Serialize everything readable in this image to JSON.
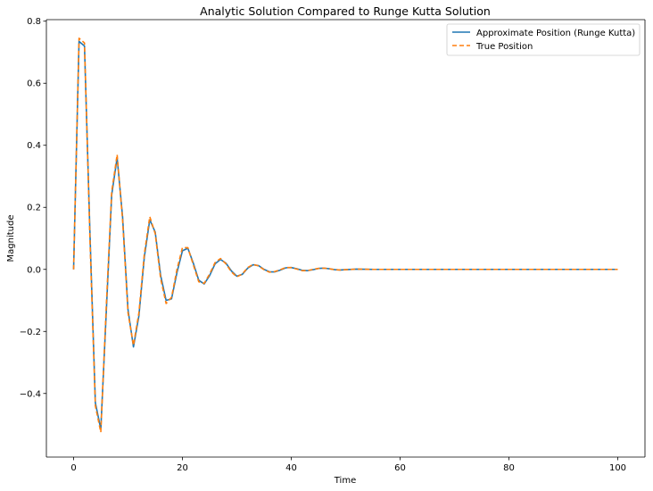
{
  "chart_data": {
    "type": "line",
    "title": "Analytic Solution Compared to Runge Kutta Solution",
    "xlabel": "Time",
    "ylabel": "Magnitude",
    "xlim": [
      -5,
      105
    ],
    "ylim": [
      -0.605,
      0.805
    ],
    "x_ticks": [
      0,
      20,
      40,
      60,
      80,
      100
    ],
    "y_ticks": [
      -0.4,
      -0.2,
      0.0,
      0.2,
      0.4,
      0.6,
      0.8
    ],
    "x_tick_labels": [
      "0",
      "20",
      "40",
      "60",
      "80",
      "100"
    ],
    "y_tick_labels": [
      "−0.4",
      "−0.2",
      "0.0",
      "0.2",
      "0.4",
      "0.6",
      "0.8"
    ],
    "grid": false,
    "legend_position": "top-right",
    "series": [
      {
        "name": "Approximate Position (Runge Kutta)",
        "color": "#1f77b4",
        "style": "solid",
        "x": [
          0,
          1,
          2,
          3,
          4,
          5,
          6,
          7,
          8,
          9,
          10,
          11,
          12,
          13,
          14,
          15,
          16,
          17,
          18,
          19,
          20,
          21,
          22,
          23,
          24,
          25,
          26,
          27,
          28,
          29,
          30,
          31,
          32,
          33,
          34,
          35,
          36,
          37,
          38,
          39,
          40,
          41,
          42,
          43,
          44,
          45,
          46,
          47,
          48,
          49,
          50,
          52,
          55,
          60,
          70,
          80,
          90,
          100
        ],
        "y": [
          0.0,
          0.735,
          0.72,
          0.12,
          -0.43,
          -0.515,
          -0.14,
          0.24,
          0.36,
          0.17,
          -0.13,
          -0.25,
          -0.15,
          0.04,
          0.16,
          0.12,
          -0.02,
          -0.1,
          -0.095,
          -0.01,
          0.06,
          0.068,
          0.02,
          -0.035,
          -0.047,
          -0.02,
          0.018,
          0.032,
          0.02,
          -0.005,
          -0.022,
          -0.016,
          0.004,
          0.015,
          0.012,
          0.0,
          -0.008,
          -0.008,
          -0.002,
          0.005,
          0.006,
          0.002,
          -0.003,
          -0.004,
          -0.001,
          0.003,
          0.004,
          0.002,
          -0.001,
          -0.002,
          -0.001,
          0.001,
          0.0,
          0.0,
          0.0,
          0.0,
          0.0,
          0.0
        ]
      },
      {
        "name": "True Position",
        "color": "#ff7f0e",
        "style": "dashed",
        "x": [
          0,
          1,
          2,
          3,
          4,
          5,
          6,
          7,
          8,
          9,
          10,
          11,
          12,
          13,
          14,
          15,
          16,
          17,
          18,
          19,
          20,
          21,
          22,
          23,
          24,
          25,
          26,
          27,
          28,
          29,
          30,
          31,
          32,
          33,
          34,
          35,
          36,
          37,
          38,
          39,
          40,
          41,
          42,
          43,
          44,
          45,
          46,
          47,
          48,
          49,
          50,
          52,
          55,
          60,
          70,
          80,
          90,
          100
        ],
        "y": [
          0.0,
          0.745,
          0.73,
          0.1,
          -0.44,
          -0.525,
          -0.12,
          0.25,
          0.37,
          0.16,
          -0.14,
          -0.245,
          -0.14,
          0.05,
          0.17,
          0.115,
          -0.03,
          -0.11,
          -0.09,
          0.0,
          0.07,
          0.07,
          0.015,
          -0.04,
          -0.045,
          -0.015,
          0.022,
          0.035,
          0.018,
          -0.008,
          -0.024,
          -0.015,
          0.006,
          0.016,
          0.011,
          -0.001,
          -0.009,
          -0.007,
          -0.001,
          0.006,
          0.006,
          0.001,
          -0.004,
          -0.004,
          0.0,
          0.003,
          0.004,
          0.002,
          -0.001,
          -0.002,
          -0.001,
          0.001,
          0.0,
          0.0,
          0.0,
          0.0,
          0.0,
          0.0
        ]
      }
    ]
  }
}
